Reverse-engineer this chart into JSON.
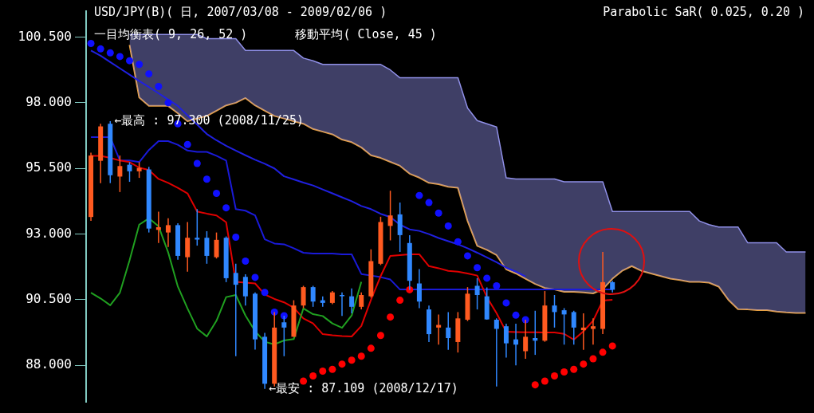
{
  "chart_data": {
    "type": "candlestick",
    "title": "USD/JPY(B)( 日, 2007/03/08 - 2009/02/06 )",
    "annotations": [
      "Parabolic SaR( 0.025, 0.20 )",
      "一目均衡表( 9, 26, 52 )",
      "移動平均( Close, 45 )",
      "←最高 : 97.300 (2008/11/25)",
      "←最安 : 87.109 (2008/12/17)"
    ],
    "categories": [
      null,
      null,
      null,
      null,
      null,
      null,
      null,
      null,
      null,
      null,
      null,
      null,
      null,
      null,
      null,
      null,
      null,
      null,
      null,
      null,
      null,
      null,
      null,
      null,
      null,
      null,
      null,
      null,
      null,
      null,
      null,
      null,
      null,
      null,
      null,
      null,
      null,
      null,
      null,
      null,
      null,
      null,
      null,
      null,
      null,
      null,
      null,
      null,
      null,
      null,
      null,
      null,
      null,
      null,
      null,
      null,
      null,
      null,
      null,
      null,
      null,
      null,
      null,
      null,
      null,
      null,
      null,
      null,
      null,
      null,
      null,
      null,
      null,
      null,
      null
    ],
    "ohlc": [
      [
        93.65,
        96.1,
        93.5,
        95.99
      ],
      [
        95.79,
        97.2,
        94.94,
        97.1
      ],
      [
        97.2,
        97.3,
        94.94,
        95.24
      ],
      [
        95.19,
        95.99,
        94.6,
        95.59
      ],
      [
        95.64,
        95.74,
        94.99,
        95.39
      ],
      [
        95.39,
        95.74,
        95.14,
        95.52
      ],
      [
        95.46,
        95.56,
        93.06,
        93.21
      ],
      [
        93.16,
        93.85,
        92.66,
        93.26
      ],
      [
        93.06,
        93.6,
        92.51,
        93.34
      ],
      [
        93.34,
        93.41,
        92.02,
        92.17
      ],
      [
        92.12,
        93.46,
        91.57,
        92.86
      ],
      [
        92.86,
        93.95,
        92.56,
        92.79
      ],
      [
        92.86,
        93.11,
        91.87,
        92.17
      ],
      [
        92.12,
        93.06,
        92.07,
        92.78
      ],
      [
        92.86,
        92.91,
        91.17,
        91.32
      ],
      [
        91.52,
        91.87,
        88.35,
        91.07
      ],
      [
        91.37,
        91.47,
        90.28,
        90.63
      ],
      [
        90.73,
        90.78,
        88.6,
        88.99
      ],
      [
        89.09,
        89.24,
        87.109,
        87.3
      ],
      [
        87.3,
        90.03,
        87.2,
        89.44
      ],
      [
        89.64,
        89.89,
        88.35,
        89.44
      ],
      [
        89.09,
        90.48,
        89.09,
        90.28
      ],
      [
        90.28,
        91.03,
        90.18,
        90.98
      ],
      [
        90.98,
        91.03,
        90.23,
        90.43
      ],
      [
        90.48,
        90.63,
        90.23,
        90.38
      ],
      [
        90.38,
        90.83,
        90.33,
        90.78
      ],
      [
        90.68,
        90.78,
        89.88,
        90.65
      ],
      [
        90.63,
        90.93,
        89.98,
        90.23
      ],
      [
        90.23,
        90.78,
        90.13,
        90.68
      ],
      [
        90.63,
        92.42,
        90.58,
        91.97
      ],
      [
        91.87,
        93.66,
        91.82,
        93.46
      ],
      [
        93.31,
        94.65,
        92.76,
        93.71
      ],
      [
        93.75,
        94.2,
        92.32,
        92.96
      ],
      [
        92.66,
        92.96,
        90.87,
        91.22
      ],
      [
        91.12,
        91.67,
        90.18,
        90.43
      ],
      [
        90.13,
        90.28,
        88.89,
        89.19
      ],
      [
        89.44,
        89.94,
        88.79,
        89.54
      ],
      [
        89.44,
        90.03,
        88.59,
        89.04
      ],
      [
        88.89,
        90.03,
        88.49,
        89.79
      ],
      [
        89.74,
        90.98,
        89.69,
        90.73
      ],
      [
        91.03,
        91.32,
        90.13,
        90.68
      ],
      [
        90.63,
        90.97,
        89.74,
        89.75
      ],
      [
        89.74,
        89.79,
        87.2,
        89.39
      ],
      [
        89.49,
        89.59,
        88.3,
        88.84
      ],
      [
        88.99,
        89.59,
        88.0,
        88.79
      ],
      [
        88.54,
        89.74,
        88.25,
        89.09
      ],
      [
        89.04,
        90.08,
        88.4,
        88.94
      ],
      [
        88.94,
        90.83,
        88.9,
        90.28
      ],
      [
        90.28,
        90.68,
        89.44,
        90.03
      ],
      [
        90.1,
        90.18,
        88.79,
        89.94
      ],
      [
        90.03,
        90.08,
        88.79,
        89.44
      ],
      [
        89.34,
        89.98,
        88.59,
        89.44
      ],
      [
        89.39,
        89.79,
        88.79,
        89.49
      ],
      [
        89.39,
        92.32,
        89.19,
        91.17
      ],
      [
        91.17,
        91.22,
        90.78,
        90.88
      ],
      null,
      null,
      null,
      null,
      null,
      null,
      null,
      null,
      null,
      null,
      null,
      null,
      null,
      null,
      null,
      null,
      null,
      null,
      null,
      null
    ],
    "colors": [
      "#ff5a20",
      "#ff5a20",
      "#3088ff",
      "#ff5a20",
      "#3088ff",
      "#ff5a20",
      "#3088ff",
      "#ff5a20",
      "#ff5a20",
      "#3088ff",
      "#ff5a20",
      "#3088ff",
      "#3088ff",
      "#ff5a20",
      "#3088ff",
      "#3088ff",
      "#3088ff",
      "#3088ff",
      "#3088ff",
      "#ff5a20",
      "#3088ff",
      "#ff5a20",
      "#ff5a20",
      "#3088ff",
      "#3088ff",
      "#ff5a20",
      "#3088ff",
      "#3088ff",
      "#ff5a20",
      "#ff5a20",
      "#ff5a20",
      "#ff5a20",
      "#3088ff",
      "#3088ff",
      "#3088ff",
      "#3088ff",
      "#ff5a20",
      "#3088ff",
      "#ff5a20",
      "#ff5a20",
      "#3088ff",
      "#3088ff",
      "#3088ff",
      "#3088ff",
      "#3088ff",
      "#ff5a20",
      "#3088ff",
      "#ff5a20",
      "#3088ff",
      "#3088ff",
      "#3088ff",
      "#ff5a20",
      "#ff5a20",
      "#ff5a20",
      "#3088ff",
      null,
      null,
      null,
      null,
      null,
      null,
      null,
      null,
      null,
      null,
      null,
      null,
      null,
      null,
      null,
      null,
      null,
      null,
      null,
      null
    ],
    "series": [
      {
        "type": "line",
        "color": "#e8a040",
        "values": [
          null,
          null,
          null,
          null,
          100.2,
          98.2,
          97.88,
          97.88,
          97.88,
          97.6,
          97.3,
          97.4,
          97.5,
          97.7,
          97.9,
          98.0,
          98.18,
          97.9,
          97.7,
          97.5,
          97.4,
          97.3,
          97.2,
          97.0,
          96.9,
          96.8,
          96.6,
          96.5,
          96.3,
          96.0,
          95.9,
          95.75,
          95.6,
          95.3,
          95.15,
          94.95,
          94.9,
          94.8,
          94.76,
          93.5,
          92.55,
          92.4,
          92.2,
          91.66,
          91.5,
          91.3,
          91.1,
          90.95,
          90.89,
          90.8,
          90.8,
          90.78,
          90.74,
          90.9,
          91.3,
          91.6,
          91.78,
          91.6,
          91.5,
          91.4,
          91.3,
          91.25,
          91.18,
          91.18,
          91.15,
          91.0,
          90.5,
          90.14,
          90.13,
          90.1,
          90.1,
          90.05,
          90.02,
          90.0,
          90.0
        ]
      },
      {
        "type": "area",
        "color": "#9090e8",
        "values": [
          null,
          null,
          null,
          null,
          100.6,
          100.6,
          100.6,
          100.6,
          100.6,
          100.6,
          100.6,
          100.6,
          100.44,
          100.44,
          100.44,
          100.44,
          99.99,
          99.99,
          99.99,
          99.99,
          99.99,
          99.99,
          99.7,
          99.6,
          99.46,
          99.46,
          99.46,
          99.46,
          99.46,
          99.46,
          99.46,
          99.25,
          98.95,
          98.95,
          98.95,
          98.95,
          98.95,
          98.95,
          98.95,
          97.8,
          97.32,
          97.2,
          97.08,
          95.14,
          95.1,
          95.1,
          95.1,
          95.1,
          95.1,
          94.99,
          94.99,
          94.99,
          94.99,
          94.99,
          93.86,
          93.86,
          93.86,
          93.86,
          93.86,
          93.86,
          93.86,
          93.86,
          93.86,
          93.5,
          93.36,
          93.27,
          93.27,
          93.27,
          92.67,
          92.67,
          92.67,
          92.67,
          92.32,
          92.32,
          92.32
        ]
      },
      {
        "type": "line",
        "color": "#2020e0",
        "values": [
          99.99,
          99.79,
          99.55,
          99.31,
          99.07,
          98.83,
          98.6,
          98.36,
          98.12,
          97.88,
          97.52,
          97.17,
          96.81,
          96.57,
          96.36,
          96.18,
          96.0,
          95.83,
          95.68,
          95.5,
          95.2,
          95.08,
          94.96,
          94.85,
          94.7,
          94.55,
          94.4,
          94.25,
          94.07,
          93.95,
          93.77,
          93.65,
          93.36,
          93.18,
          93.12,
          93.0,
          92.85,
          92.73,
          92.61,
          92.46,
          92.29,
          92.11,
          91.93,
          91.72,
          91.57,
          91.39,
          null,
          null,
          null,
          null,
          null,
          null,
          null,
          null,
          null,
          null,
          null,
          null,
          null,
          null,
          null,
          null,
          null,
          null,
          null,
          null,
          null,
          null,
          null,
          null,
          null,
          null,
          null,
          null,
          null
        ]
      },
      {
        "type": "line",
        "color": "#1a1ad8",
        "values": [
          96.69,
          96.69,
          96.69,
          95.8,
          95.8,
          95.74,
          96.2,
          96.54,
          96.54,
          96.4,
          96.18,
          96.13,
          96.13,
          95.98,
          95.8,
          93.95,
          93.89,
          93.71,
          92.8,
          92.64,
          92.61,
          92.46,
          92.29,
          92.26,
          92.26,
          92.26,
          92.23,
          92.23,
          91.48,
          91.42,
          91.36,
          91.27,
          90.89,
          90.89,
          90.89,
          90.89,
          90.89,
          90.89,
          90.89,
          90.89,
          90.89,
          90.89,
          90.89,
          90.89,
          90.89,
          90.89,
          90.89,
          90.89,
          90.89,
          90.89,
          90.89,
          90.89,
          90.89,
          90.89,
          90.89,
          null,
          null,
          null,
          null,
          null,
          null,
          null,
          null,
          null,
          null,
          null,
          null,
          null,
          null,
          null,
          null,
          null,
          null,
          null,
          null
        ]
      },
      {
        "type": "line",
        "color": "#e00000",
        "values": [
          95.98,
          95.98,
          95.9,
          95.8,
          95.74,
          95.53,
          95.44,
          95.1,
          94.95,
          94.76,
          94.55,
          93.86,
          93.78,
          93.71,
          93.45,
          91.18,
          91.15,
          91.12,
          90.7,
          90.53,
          90.4,
          90.2,
          89.79,
          89.6,
          89.19,
          89.15,
          89.12,
          89.1,
          89.5,
          90.5,
          91.4,
          92.17,
          92.2,
          92.23,
          92.23,
          91.78,
          91.7,
          91.6,
          91.57,
          91.5,
          91.42,
          90.6,
          89.99,
          89.28,
          89.27,
          89.26,
          89.26,
          89.25,
          89.25,
          89.2,
          88.98,
          89.3,
          89.7,
          90.47,
          90.5,
          null,
          null,
          null,
          null,
          null,
          null,
          null,
          null,
          null,
          null,
          null,
          null,
          null,
          null,
          null,
          null,
          null,
          null,
          null,
          null
        ]
      },
      {
        "type": "line",
        "color": "#20a020",
        "values": [
          90.77,
          90.55,
          90.29,
          90.77,
          92.0,
          93.36,
          93.6,
          93.3,
          92.3,
          91.0,
          90.17,
          89.4,
          89.1,
          89.7,
          90.6,
          90.68,
          89.9,
          89.3,
          88.9,
          88.8,
          88.95,
          89.0,
          90.17,
          89.95,
          89.88,
          89.6,
          89.43,
          89.9,
          91.18,
          null,
          null,
          null,
          null,
          null,
          null,
          null,
          null,
          null,
          null,
          null,
          null,
          null,
          null,
          null,
          null,
          null,
          null,
          null,
          null,
          null,
          null,
          null,
          null,
          null,
          null,
          null,
          null,
          null,
          null,
          null,
          null,
          null,
          null,
          null,
          null,
          null,
          null,
          null,
          null,
          null,
          null,
          null,
          null,
          null,
          null
        ]
      },
      {
        "type": "scatter",
        "color": "#1010ff",
        "marker": "circle",
        "values": [
          100.26,
          100.05,
          99.9,
          99.76,
          99.6,
          99.46,
          99.1,
          98.62,
          98.0,
          97.2,
          96.41,
          95.69,
          95.09,
          94.55,
          94.0,
          92.88,
          91.97,
          91.35,
          90.78,
          90.03,
          89.89,
          null,
          null,
          null,
          null,
          null,
          null,
          null,
          null,
          null,
          null,
          null,
          null,
          null,
          94.47,
          94.2,
          93.8,
          93.31,
          92.71,
          92.17,
          91.72,
          91.32,
          91.03,
          90.38,
          89.91,
          89.74,
          null,
          null,
          null,
          null,
          null,
          null,
          null,
          null,
          null,
          null,
          null,
          null,
          null,
          null,
          null,
          null,
          null,
          null,
          null,
          null,
          null,
          null,
          null,
          null,
          null,
          null,
          null,
          null,
          null
        ]
      },
      {
        "type": "scatter",
        "color": "#ff0000",
        "marker": "circle",
        "values": [
          null,
          null,
          null,
          null,
          null,
          null,
          null,
          null,
          null,
          null,
          null,
          null,
          null,
          null,
          null,
          null,
          null,
          null,
          null,
          null,
          null,
          null,
          87.4,
          87.6,
          87.78,
          87.85,
          88.05,
          88.2,
          88.35,
          88.65,
          89.14,
          89.84,
          90.48,
          90.88,
          null,
          null,
          null,
          null,
          null,
          null,
          null,
          null,
          null,
          null,
          null,
          null,
          87.26,
          87.4,
          87.6,
          87.75,
          87.85,
          88.05,
          88.25,
          88.5,
          88.74,
          null,
          null,
          null,
          null,
          null,
          null,
          null,
          null,
          null,
          null,
          null,
          null,
          null,
          null,
          null,
          null,
          null,
          null,
          null,
          null
        ]
      }
    ],
    "ylim": [
      86.6,
      101.5
    ],
    "yticks": [
      {
        "value": 88,
        "label": "88.000"
      },
      {
        "value": 90.5,
        "label": "90.500"
      },
      {
        "value": 93,
        "label": "93.000"
      },
      {
        "value": 95.5,
        "label": "95.500"
      },
      {
        "value": 98,
        "label": "98.000"
      },
      {
        "value": 100.5,
        "label": "100.500"
      }
    ],
    "grid": false,
    "legend": false
  }
}
